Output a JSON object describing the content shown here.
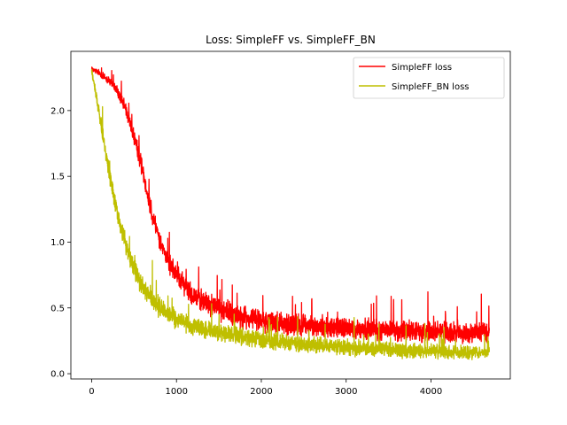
{
  "chart_data": {
    "type": "line",
    "title": "Loss: SimpleFF vs. SimpleFF_BN",
    "xlabel": "",
    "ylabel": "",
    "xlim": [
      -245,
      4935
    ],
    "ylim": [
      -0.04,
      2.45
    ],
    "x_ticks": [
      0,
      1000,
      2000,
      3000,
      4000
    ],
    "x_tick_labels": [
      "0",
      "1000",
      "2000",
      "3000",
      "4000"
    ],
    "y_ticks": [
      0.0,
      0.5,
      1.0,
      1.5,
      2.0
    ],
    "y_tick_labels": [
      "0.0",
      "0.5",
      "1.0",
      "1.5",
      "2.0"
    ],
    "grid": false,
    "legend_position": "upper right",
    "n_steps": 4690,
    "series": [
      {
        "name": "SimpleFF loss",
        "color": "#ff0000",
        "trend": {
          "x": [
            0,
            100,
            200,
            300,
            400,
            500,
            600,
            700,
            800,
            900,
            1000,
            1200,
            1400,
            1600,
            1800,
            2000,
            2400,
            2800,
            3200,
            3600,
            4000,
            4400,
            4690
          ],
          "y": [
            2.32,
            2.28,
            2.23,
            2.15,
            2.02,
            1.8,
            1.55,
            1.25,
            1.02,
            0.86,
            0.74,
            0.6,
            0.52,
            0.47,
            0.43,
            0.4,
            0.37,
            0.35,
            0.34,
            0.33,
            0.32,
            0.31,
            0.31
          ]
        },
        "noise_band": {
          "x": [
            0,
            500,
            1000,
            2000,
            4690
          ],
          "amplitude": [
            0.02,
            0.07,
            0.1,
            0.1,
            0.09
          ]
        }
      },
      {
        "name": "SimpleFF_BN loss",
        "color": "#bfbf00",
        "trend": {
          "x": [
            0,
            100,
            200,
            300,
            400,
            500,
            600,
            800,
            1000,
            1200,
            1500,
            2000,
            2500,
            3000,
            3500,
            4000,
            4690
          ],
          "y": [
            2.3,
            1.95,
            1.55,
            1.22,
            0.98,
            0.8,
            0.66,
            0.5,
            0.41,
            0.36,
            0.31,
            0.26,
            0.22,
            0.2,
            0.18,
            0.17,
            0.16
          ]
        },
        "noise_band": {
          "x": [
            0,
            300,
            1000,
            4690
          ],
          "amplitude": [
            0.04,
            0.1,
            0.08,
            0.06
          ]
        }
      }
    ]
  }
}
